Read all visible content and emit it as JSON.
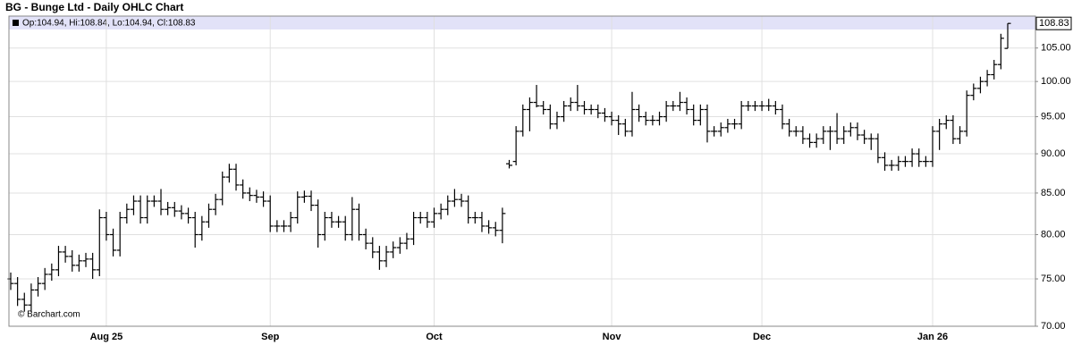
{
  "chart_data": {
    "type": "ohlc",
    "title": "BG - Bunge Ltd - Daily OHLC Chart",
    "header": "Op:104.94, Hi:108.84, Lo:104.94, Cl:108.83",
    "source": "© Barchart.com",
    "color": "#000000",
    "yscale": "log",
    "grid": true,
    "ylim": [
      70,
      110
    ],
    "yticks": [
      {
        "value": 70,
        "label": "70.00"
      },
      {
        "value": 75,
        "label": "75.00"
      },
      {
        "value": 80,
        "label": "80.00"
      },
      {
        "value": 85,
        "label": "85.00"
      },
      {
        "value": 90,
        "label": "90.00"
      },
      {
        "value": 95,
        "label": "95.00"
      },
      {
        "value": 100,
        "label": "100.00"
      },
      {
        "value": 105,
        "label": "105.00"
      }
    ],
    "last_price": {
      "value": 108.83,
      "label": "108.83"
    },
    "categories": [
      null,
      null,
      null,
      null,
      null,
      null,
      null,
      null,
      null,
      null,
      null,
      null,
      null,
      null,
      "Aug 25",
      null,
      null,
      null,
      null,
      null,
      null,
      null,
      null,
      null,
      null,
      null,
      null,
      null,
      null,
      null,
      null,
      null,
      null,
      null,
      null,
      null,
      null,
      null,
      "Sep",
      null,
      null,
      null,
      null,
      null,
      null,
      null,
      null,
      null,
      null,
      null,
      null,
      null,
      null,
      null,
      null,
      null,
      null,
      null,
      null,
      null,
      null,
      null,
      "Oct",
      null,
      null,
      null,
      null,
      null,
      null,
      null,
      null,
      null,
      null,
      null,
      null,
      null,
      null,
      null,
      null,
      null,
      null,
      null,
      null,
      null,
      null,
      null,
      null,
      null,
      "Nov",
      null,
      null,
      null,
      null,
      null,
      null,
      null,
      null,
      null,
      null,
      null,
      null,
      null,
      null,
      null,
      null,
      null,
      null,
      null,
      null,
      null,
      "Dec",
      null,
      null,
      null,
      null,
      null,
      null,
      null,
      null,
      null,
      null,
      null,
      null,
      null,
      null,
      null,
      null,
      null,
      null,
      null,
      null,
      null,
      null,
      null,
      null,
      "Jan 26",
      null,
      null,
      null,
      null,
      null,
      null,
      null,
      null,
      null,
      null,
      null
    ],
    "open": [
      75,
      74.5,
      72.8,
      72.2,
      73.8,
      74.5,
      75.5,
      76,
      78,
      77.5,
      76.5,
      77,
      77.2,
      76,
      82,
      80,
      78.2,
      82,
      83,
      84,
      82,
      84,
      84,
      83,
      83.2,
      82.8,
      82.5,
      82,
      80,
      81.5,
      83,
      84.2,
      87,
      88,
      86,
      85,
      84.7,
      84.5,
      84,
      81,
      81,
      81,
      82,
      84.5,
      84.6,
      83.5,
      80,
      82,
      81.5,
      81.5,
      80,
      83,
      80,
      79,
      78,
      77,
      78,
      78.5,
      79,
      79.5,
      82,
      82,
      81.5,
      82.5,
      83,
      84,
      84.2,
      84,
      82,
      82,
      81,
      80.8,
      80.5,
      88.7,
      89,
      93,
      96,
      97,
      96.5,
      96,
      94,
      95,
      96.5,
      97,
      96.5,
      96,
      96,
      95.5,
      95,
      94.5,
      94,
      93,
      96,
      95,
      94.5,
      94.5,
      95,
      96.5,
      96.5,
      97,
      96,
      94.5,
      96,
      93,
      93,
      93.5,
      94,
      94,
      96.5,
      96.5,
      96.5,
      96.5,
      96.5,
      96,
      94,
      93,
      93,
      92,
      91.5,
      92,
      93,
      93,
      92,
      93,
      93.5,
      92.5,
      92,
      92,
      89.5,
      88.5,
      88.5,
      89,
      89,
      90,
      89,
      89,
      93,
      94,
      94.5,
      92,
      93,
      98,
      99,
      100,
      101,
      102.5,
      104.94
    ],
    "high": [
      75.7,
      75.2,
      73.5,
      74.5,
      75.2,
      76.2,
      76.7,
      78.7,
      78.7,
      78.2,
      77.7,
      77.9,
      77.9,
      83,
      82.7,
      80.7,
      82.7,
      83.7,
      84.7,
      84.7,
      84.7,
      84.7,
      85.5,
      83.9,
      83.9,
      83.5,
      83.2,
      82.7,
      82.2,
      83.7,
      84.9,
      87.7,
      88.7,
      88.7,
      86.7,
      85.7,
      85.4,
      85.2,
      84.7,
      81.7,
      81.7,
      82.7,
      85.2,
      85.3,
      85.3,
      84.2,
      82.7,
      82.7,
      82.2,
      82.2,
      84.5,
      83.7,
      80.7,
      79.7,
      78.7,
      78.7,
      79.2,
      79.7,
      80.2,
      82.7,
      82.7,
      82.7,
      83.2,
      83.7,
      84.7,
      85.5,
      84.9,
      84.7,
      82.7,
      82.7,
      81.7,
      81.5,
      83.2,
      89.2,
      93.7,
      96.7,
      97.7,
      99.5,
      97.2,
      96.7,
      95.7,
      97.2,
      97.7,
      99.5,
      97.2,
      96.7,
      96.7,
      96.2,
      95.7,
      95.2,
      94.7,
      98.5,
      96.7,
      95.7,
      95.2,
      95.7,
      97.2,
      97.2,
      98.5,
      97.7,
      96.7,
      96.7,
      96.7,
      93.7,
      94.2,
      94.7,
      94.7,
      97.2,
      97.2,
      97.2,
      97.2,
      97.5,
      97.2,
      96.7,
      94.7,
      93.7,
      93.7,
      92.7,
      92.7,
      93.7,
      93.7,
      95.5,
      93.7,
      94.2,
      94.2,
      93.2,
      92.7,
      92.7,
      90.2,
      89.2,
      89.7,
      89.7,
      90.7,
      90.7,
      89.7,
      93.7,
      94.7,
      95.2,
      95.2,
      93.7,
      98.7,
      99.7,
      100.7,
      101.7,
      103.2,
      107.2,
      108.84
    ],
    "low": [
      73.8,
      72.1,
      71.5,
      71.5,
      73.1,
      73.8,
      74.8,
      75.3,
      76.8,
      75.8,
      75.8,
      76.3,
      75,
      75.3,
      79.3,
      77.5,
      77.5,
      81.3,
      82.3,
      81.3,
      81.3,
      83.3,
      82.3,
      82.3,
      82.1,
      81.8,
      81.3,
      78.5,
      79.3,
      80.8,
      82.3,
      83.5,
      86.3,
      85.3,
      84.3,
      84,
      83.8,
      83.3,
      80.3,
      80.3,
      80.3,
      80.3,
      81.3,
      83.8,
      82.8,
      78.5,
      79.3,
      80.8,
      80.8,
      79.3,
      79.3,
      79.3,
      78.3,
      77.3,
      76,
      76.3,
      77.3,
      77.8,
      78.3,
      78.8,
      81.3,
      80.8,
      80.8,
      81.8,
      82.3,
      83.3,
      83.3,
      81.3,
      81.3,
      80.3,
      80.1,
      79.8,
      79,
      88.1,
      88.5,
      92.3,
      93,
      96.3,
      95.3,
      93.3,
      93.3,
      94.3,
      95.8,
      95.8,
      95.3,
      95.3,
      94.8,
      94.3,
      93.8,
      92.5,
      92.3,
      92.3,
      94.3,
      93.8,
      93.8,
      93.8,
      94.3,
      95.8,
      95.8,
      95.3,
      93.8,
      93.8,
      91.5,
      92.3,
      92.3,
      92.8,
      93.3,
      93.3,
      95.8,
      95.8,
      95.8,
      95.8,
      95.3,
      93.3,
      92.3,
      92.3,
      91.3,
      90.8,
      90.8,
      91.3,
      90.5,
      91.3,
      91.3,
      92.3,
      91.8,
      91.3,
      90.5,
      88.8,
      87.8,
      87.8,
      87.8,
      88.3,
      88.3,
      88.3,
      88.3,
      88.3,
      90.5,
      93.3,
      91.3,
      91.3,
      92.3,
      97.3,
      98.3,
      99.3,
      100.3,
      101.8,
      104.94
    ],
    "close": [
      74.5,
      72.8,
      72.2,
      73.8,
      74.5,
      75.5,
      76,
      78,
      77.5,
      76.5,
      77,
      77.2,
      76,
      82,
      80,
      78.2,
      82,
      83,
      84,
      82,
      84,
      84,
      83,
      83.2,
      82.8,
      82.5,
      82,
      80,
      81.5,
      83,
      84.2,
      87,
      88,
      86,
      85,
      84.7,
      84.5,
      84,
      81,
      81,
      81,
      82,
      84.5,
      84.6,
      83.5,
      80,
      82,
      81.5,
      81.5,
      80,
      83,
      80,
      79,
      78,
      77,
      78,
      78.5,
      79,
      79.5,
      82,
      82,
      81.5,
      82.5,
      83,
      84,
      84.2,
      84,
      82,
      82,
      81,
      80.8,
      80.5,
      82.5,
      88.5,
      93,
      96,
      97,
      96.5,
      96,
      94,
      95,
      96.5,
      97,
      96.5,
      96,
      96,
      95.5,
      95,
      94.5,
      94,
      93,
      96,
      95,
      94.5,
      94.5,
      95,
      96.5,
      96.5,
      97,
      96,
      94.5,
      96,
      93,
      93,
      93.5,
      94,
      94,
      96.5,
      96.5,
      96.5,
      96.5,
      96.5,
      96,
      94,
      93,
      93,
      92,
      91.5,
      92,
      93,
      93,
      92,
      93,
      93.5,
      92.5,
      92,
      92,
      89.5,
      88.5,
      88.5,
      89,
      89,
      90,
      89,
      89,
      93,
      94,
      94.5,
      92,
      93,
      98,
      99,
      100,
      101,
      102.5,
      106.5,
      108.83
    ]
  }
}
